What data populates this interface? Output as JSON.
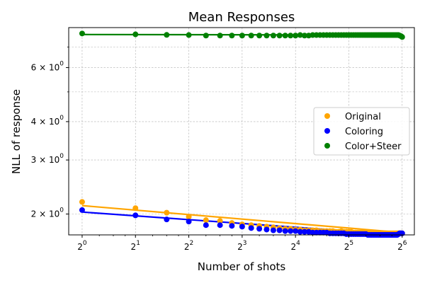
{
  "chart_data": {
    "type": "scatter",
    "title": "Mean Responses",
    "xlabel": "Number of shots",
    "ylabel": "NLL of response",
    "xscale": "log2",
    "yscale": "log",
    "xlim": [
      0.84,
      75
    ],
    "ylim": [
      1.71,
      8.1
    ],
    "grid": true,
    "legend_position": "center-right",
    "x_ticks": [
      {
        "value": 1,
        "base": "2",
        "exp": "0"
      },
      {
        "value": 2,
        "base": "2",
        "exp": "1"
      },
      {
        "value": 4,
        "base": "2",
        "exp": "2"
      },
      {
        "value": 8,
        "base": "2",
        "exp": "3"
      },
      {
        "value": 16,
        "base": "2",
        "exp": "4"
      },
      {
        "value": 32,
        "base": "2",
        "exp": "5"
      },
      {
        "value": 64,
        "base": "2",
        "exp": "6"
      }
    ],
    "y_ticks": [
      {
        "value": 2,
        "mant": "2",
        "base": "10",
        "exp": "0"
      },
      {
        "value": 3,
        "mant": "3",
        "base": "10",
        "exp": "0"
      },
      {
        "value": 4,
        "mant": "4",
        "base": "10",
        "exp": "0"
      },
      {
        "value": 6,
        "mant": "6",
        "base": "10",
        "exp": "0"
      }
    ],
    "y_minor_ticks": [
      5,
      7
    ],
    "series": [
      {
        "name": "Original",
        "color": "#ffa500",
        "x": [
          1,
          2,
          3,
          4,
          5,
          6,
          7,
          8,
          9,
          10,
          11,
          12,
          13,
          14,
          15,
          16,
          17,
          18,
          19,
          20,
          21,
          22,
          23,
          24,
          25,
          26,
          27,
          28,
          29,
          30,
          31,
          32,
          33,
          34,
          35,
          36,
          37,
          38,
          39,
          40,
          41,
          42,
          43,
          44,
          45,
          46,
          47,
          48,
          49,
          50,
          51,
          52,
          53,
          54,
          55,
          56,
          57,
          58,
          59,
          60,
          61,
          62,
          63,
          64
        ],
        "y": [
          2.19,
          2.09,
          2.02,
          1.96,
          1.91,
          1.9,
          1.87,
          1.85,
          1.84,
          1.83,
          1.82,
          1.81,
          1.8,
          1.79,
          1.79,
          1.78,
          1.78,
          1.77,
          1.77,
          1.77,
          1.77,
          1.76,
          1.76,
          1.76,
          1.76,
          1.76,
          1.75,
          1.75,
          1.76,
          1.75,
          1.75,
          1.75,
          1.75,
          1.74,
          1.74,
          1.74,
          1.74,
          1.74,
          1.74,
          1.74,
          1.74,
          1.74,
          1.74,
          1.73,
          1.73,
          1.73,
          1.73,
          1.73,
          1.73,
          1.73,
          1.73,
          1.73,
          1.73,
          1.73,
          1.73,
          1.73,
          1.73,
          1.73,
          1.73,
          1.73,
          1.73,
          1.73,
          1.73,
          1.73
        ],
        "fit": [
          [
            1,
            2.13
          ],
          [
            64,
            1.74
          ]
        ]
      },
      {
        "name": "Coloring",
        "color": "#0000ff",
        "x": [
          1,
          2,
          3,
          4,
          5,
          6,
          7,
          8,
          9,
          10,
          11,
          12,
          13,
          14,
          15,
          16,
          17,
          18,
          19,
          20,
          21,
          22,
          23,
          24,
          25,
          26,
          27,
          28,
          29,
          30,
          31,
          32,
          33,
          34,
          35,
          36,
          37,
          38,
          39,
          40,
          41,
          42,
          43,
          44,
          45,
          46,
          47,
          48,
          49,
          50,
          51,
          52,
          53,
          54,
          55,
          56,
          57,
          58,
          59,
          60,
          61,
          62,
          63,
          64
        ],
        "y": [
          2.06,
          1.98,
          1.92,
          1.89,
          1.84,
          1.84,
          1.83,
          1.82,
          1.8,
          1.79,
          1.78,
          1.77,
          1.77,
          1.76,
          1.76,
          1.76,
          1.75,
          1.75,
          1.75,
          1.74,
          1.74,
          1.74,
          1.74,
          1.74,
          1.73,
          1.73,
          1.73,
          1.73,
          1.73,
          1.73,
          1.72,
          1.72,
          1.72,
          1.72,
          1.72,
          1.72,
          1.72,
          1.72,
          1.72,
          1.72,
          1.71,
          1.71,
          1.71,
          1.71,
          1.71,
          1.71,
          1.71,
          1.71,
          1.71,
          1.71,
          1.71,
          1.71,
          1.71,
          1.71,
          1.71,
          1.71,
          1.71,
          1.71,
          1.71,
          1.71,
          1.72,
          1.73,
          1.73,
          1.73
        ],
        "fit": [
          [
            1,
            2.03
          ],
          [
            64,
            1.71
          ]
        ]
      },
      {
        "name": "Color+Steer",
        "color": "#008000",
        "x": [
          1,
          2,
          3,
          4,
          5,
          6,
          7,
          8,
          9,
          10,
          11,
          12,
          13,
          14,
          15,
          16,
          17,
          18,
          19,
          20,
          21,
          22,
          23,
          24,
          25,
          26,
          27,
          28,
          29,
          30,
          31,
          32,
          33,
          34,
          35,
          36,
          37,
          38,
          39,
          40,
          41,
          42,
          43,
          44,
          45,
          46,
          47,
          48,
          49,
          50,
          51,
          52,
          53,
          54,
          55,
          56,
          57,
          58,
          59,
          60,
          61,
          62,
          63,
          64
        ],
        "y": [
          7.75,
          7.7,
          7.67,
          7.66,
          7.63,
          7.63,
          7.63,
          7.63,
          7.63,
          7.63,
          7.63,
          7.63,
          7.63,
          7.63,
          7.63,
          7.63,
          7.66,
          7.63,
          7.63,
          7.66,
          7.66,
          7.66,
          7.66,
          7.66,
          7.66,
          7.66,
          7.66,
          7.66,
          7.66,
          7.66,
          7.66,
          7.66,
          7.66,
          7.66,
          7.66,
          7.66,
          7.66,
          7.66,
          7.66,
          7.66,
          7.66,
          7.66,
          7.66,
          7.66,
          7.66,
          7.66,
          7.66,
          7.66,
          7.66,
          7.66,
          7.66,
          7.66,
          7.66,
          7.66,
          7.66,
          7.66,
          7.66,
          7.66,
          7.66,
          7.66,
          7.66,
          7.63,
          7.6,
          7.55
        ],
        "fit": [
          [
            1,
            7.69
          ],
          [
            64,
            7.66
          ]
        ]
      }
    ]
  }
}
